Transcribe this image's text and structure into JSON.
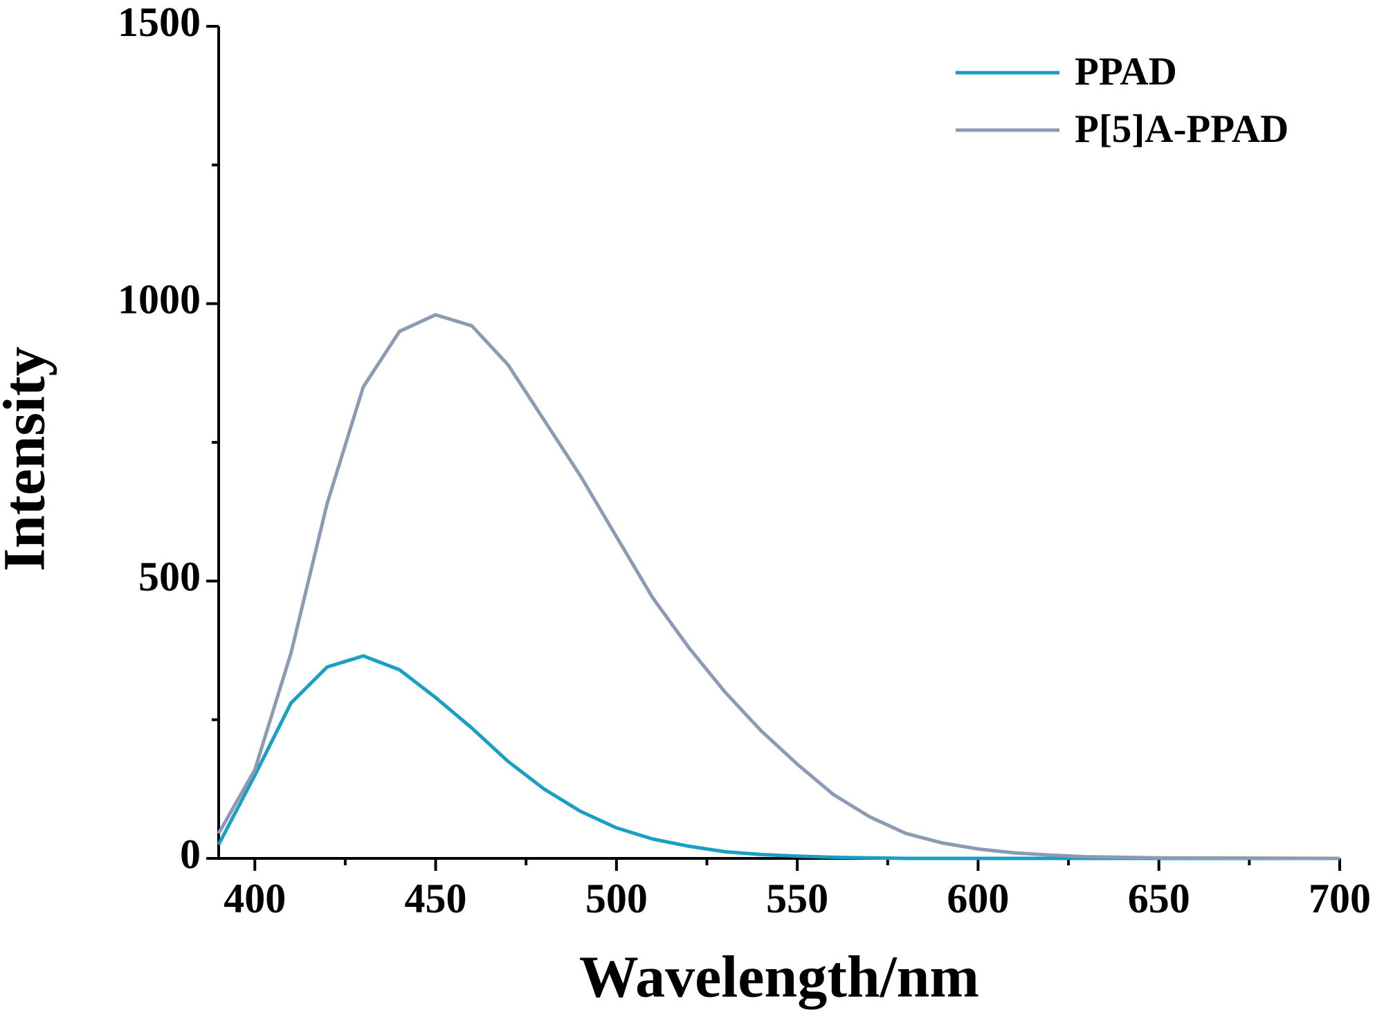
{
  "chart_data": {
    "type": "line",
    "xlabel": "Wavelength/nm",
    "ylabel": "Intensity",
    "x": [
      390,
      400,
      410,
      420,
      430,
      440,
      450,
      460,
      470,
      480,
      490,
      500,
      510,
      520,
      530,
      540,
      550,
      560,
      570,
      580,
      590,
      600,
      610,
      620,
      630,
      640,
      650,
      700
    ],
    "series": [
      {
        "name": "PPAD",
        "color": "#1a9fc4",
        "values": [
          25,
          150,
          280,
          345,
          365,
          340,
          290,
          235,
          175,
          125,
          85,
          55,
          35,
          22,
          12,
          7,
          4,
          2,
          1,
          0,
          0,
          0,
          0,
          0,
          0,
          0,
          0,
          0
        ]
      },
      {
        "name": "P[5]A-PPAD",
        "color": "#8c9bb4",
        "values": [
          45,
          160,
          370,
          640,
          850,
          950,
          980,
          960,
          890,
          790,
          690,
          580,
          470,
          380,
          300,
          230,
          170,
          115,
          75,
          45,
          28,
          17,
          10,
          6,
          3,
          2,
          1,
          0
        ]
      }
    ],
    "xlim": [
      390,
      700
    ],
    "ylim": [
      0,
      1500
    ],
    "xticks": [
      400,
      450,
      500,
      550,
      600,
      650,
      700
    ],
    "xminorticks": [
      425,
      475,
      525,
      575,
      625,
      675
    ],
    "yticks": [
      0,
      500,
      1000,
      1500
    ],
    "yminorticks": [
      250,
      750,
      1250
    ],
    "legend": "top-right",
    "grid": false
  }
}
